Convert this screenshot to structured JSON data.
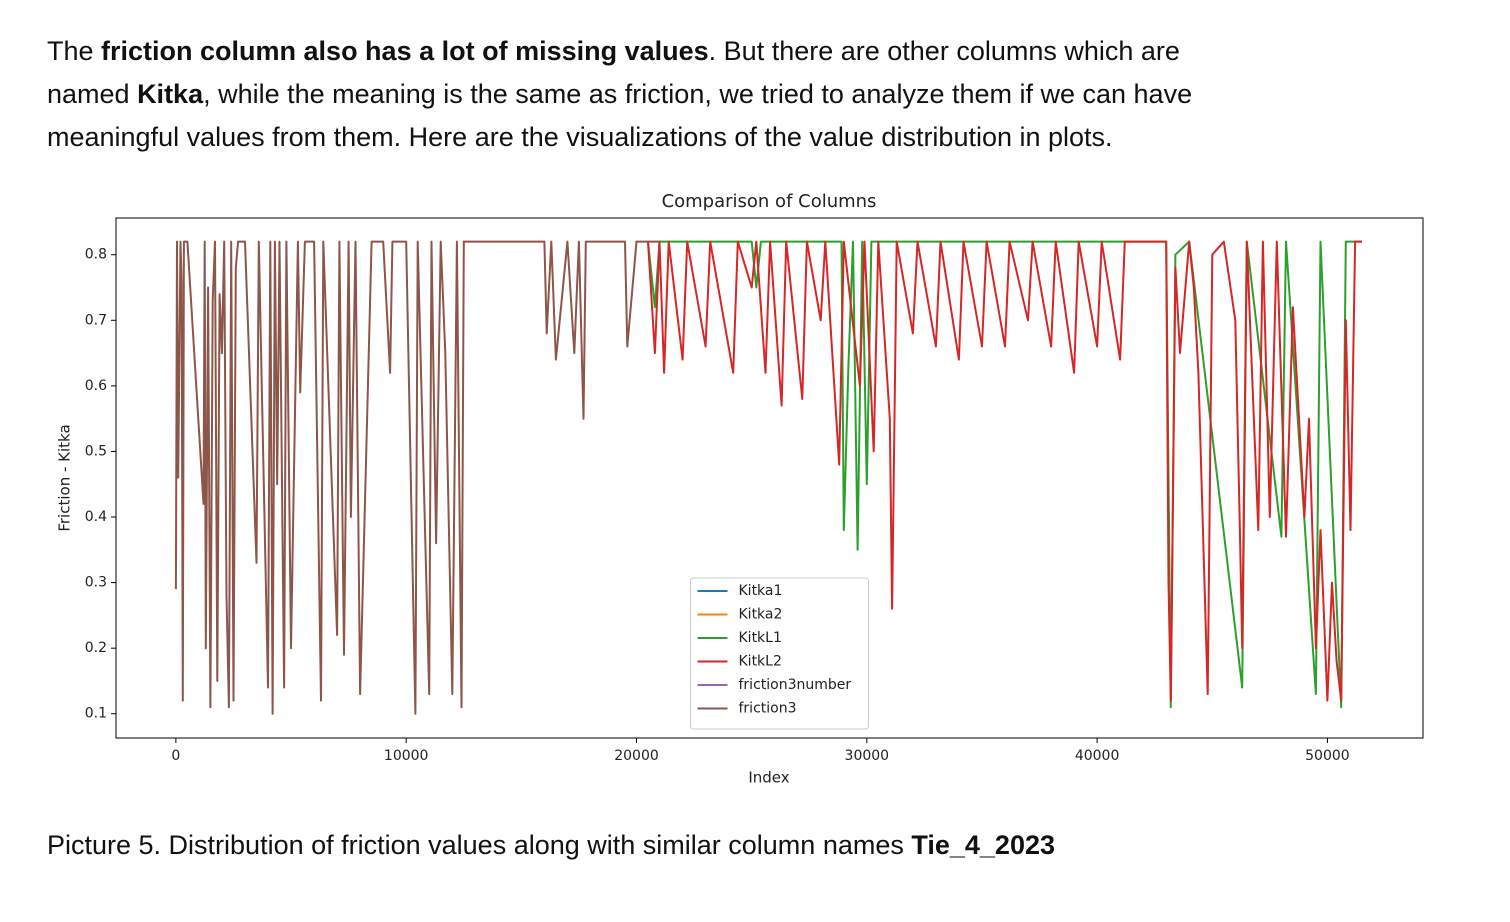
{
  "document": {
    "paragraph": [
      [
        {
          "text": "The "
        },
        {
          "text": "friction column also has a lot of missing values",
          "bold": true
        },
        {
          "text": ". But there are other columns which are"
        }
      ],
      [
        {
          "text": "named "
        },
        {
          "text": "Kitka",
          "bold": true
        },
        {
          "text": ", while the meaning is the same as friction, we tried to analyze them if we can have"
        }
      ],
      [
        {
          "text": "meaningful values from them. Here are the visualizations of the value distribution in plots."
        }
      ]
    ],
    "caption": [
      {
        "text": "Picture 5. Distribution of friction values along with similar column names "
      },
      {
        "text": "Tie_4_2023",
        "bold": true
      }
    ]
  },
  "chart_data": {
    "type": "line",
    "title": "Comparison of Columns",
    "x_label": "Index",
    "y_label": "Friction - Kitka",
    "xlim": [
      -2600,
      54150
    ],
    "ylim": [
      0.063,
      0.856
    ],
    "xticks": [
      0,
      10000,
      20000,
      30000,
      40000,
      50000
    ],
    "yticks": [
      0.1,
      0.2,
      0.3,
      0.4,
      0.5,
      0.6,
      0.7,
      0.8
    ],
    "grid": false,
    "legend": "lower center",
    "series": [
      {
        "name": "Kitka1",
        "color": "#1f77b4",
        "x": [],
        "values": []
      },
      {
        "name": "Kitka2",
        "color": "#ff7f0e",
        "x": [],
        "values": []
      },
      {
        "name": "KitkL1",
        "color": "#2ca02c",
        "x": [
          20500,
          20800,
          21000,
          25000,
          25200,
          25400,
          28900,
          29000,
          29200,
          29400,
          29600,
          29800,
          30000,
          30200,
          42000,
          43000,
          43200,
          43400,
          44000,
          46300,
          46500,
          48000,
          48200,
          49500,
          49700,
          50600,
          50800,
          51500
        ],
        "values": [
          0.82,
          0.72,
          0.82,
          0.82,
          0.75,
          0.82,
          0.82,
          0.38,
          0.63,
          0.82,
          0.35,
          0.82,
          0.45,
          0.82,
          0.82,
          0.82,
          0.11,
          0.8,
          0.82,
          0.14,
          0.82,
          0.37,
          0.82,
          0.13,
          0.82,
          0.11,
          0.82,
          0.82
        ]
      },
      {
        "name": "KitkL2",
        "color": "#d62728",
        "x": [
          20500,
          20800,
          21000,
          21200,
          21400,
          22000,
          22200,
          23000,
          23200,
          24200,
          24400,
          25000,
          25200,
          25600,
          25800,
          26300,
          26500,
          27200,
          27400,
          28000,
          28200,
          28800,
          29000,
          29700,
          29900,
          30300,
          30500,
          31000,
          31100,
          31300,
          32000,
          32200,
          33000,
          33200,
          34000,
          34200,
          35000,
          35200,
          36000,
          36200,
          37000,
          37200,
          38000,
          38200,
          39000,
          39200,
          40000,
          40200,
          41000,
          41200,
          42000,
          43000,
          43100,
          43200,
          43400,
          43600,
          44000,
          44200,
          44400,
          44800,
          45000,
          45500,
          46000,
          46200,
          46300,
          46500,
          47000,
          47200,
          47500,
          47800,
          48200,
          48500,
          49000,
          49200,
          49500,
          49700,
          50000,
          50200,
          50400,
          50600,
          50800,
          51000,
          51200,
          51500
        ],
        "values": [
          0.82,
          0.65,
          0.82,
          0.62,
          0.82,
          0.64,
          0.82,
          0.66,
          0.82,
          0.62,
          0.82,
          0.75,
          0.82,
          0.62,
          0.82,
          0.57,
          0.82,
          0.58,
          0.82,
          0.7,
          0.82,
          0.48,
          0.82,
          0.6,
          0.82,
          0.5,
          0.82,
          0.55,
          0.26,
          0.82,
          0.68,
          0.82,
          0.66,
          0.82,
          0.64,
          0.82,
          0.66,
          0.82,
          0.66,
          0.82,
          0.7,
          0.82,
          0.66,
          0.82,
          0.62,
          0.82,
          0.66,
          0.82,
          0.64,
          0.82,
          0.82,
          0.82,
          0.3,
          0.12,
          0.78,
          0.65,
          0.82,
          0.75,
          0.62,
          0.13,
          0.8,
          0.82,
          0.7,
          0.38,
          0.2,
          0.82,
          0.38,
          0.82,
          0.4,
          0.82,
          0.37,
          0.72,
          0.4,
          0.55,
          0.2,
          0.38,
          0.12,
          0.3,
          0.18,
          0.12,
          0.7,
          0.38,
          0.82,
          0.82
        ]
      },
      {
        "name": "friction3number",
        "color": "#9467bd",
        "x": [],
        "values": []
      },
      {
        "name": "friction3",
        "color": "#8c564b",
        "x": [
          0,
          50,
          100,
          200,
          250,
          300,
          350,
          400,
          500,
          1200,
          1250,
          1300,
          1400,
          1500,
          1600,
          1700,
          1800,
          1900,
          2000,
          2100,
          2200,
          2300,
          2400,
          2500,
          2600,
          2700,
          3000,
          3500,
          3600,
          4000,
          4100,
          4200,
          4300,
          4400,
          4500,
          4700,
          4800,
          5000,
          5300,
          5400,
          5600,
          6000,
          6300,
          6400,
          7000,
          7100,
          7300,
          7500,
          7600,
          7800,
          8000,
          8500,
          9000,
          9300,
          9400,
          10000,
          10400,
          10500,
          11000,
          11100,
          11300,
          11500,
          11700,
          12000,
          12200,
          12400,
          12500,
          16000,
          16100,
          16300,
          16500,
          17000,
          17300,
          17500,
          17700,
          17800,
          18500,
          19500,
          19600,
          20000,
          20500,
          21000
        ],
        "values": [
          0.29,
          0.82,
          0.46,
          0.82,
          0.76,
          0.12,
          0.82,
          0.82,
          0.82,
          0.42,
          0.82,
          0.2,
          0.75,
          0.11,
          0.73,
          0.82,
          0.15,
          0.74,
          0.65,
          0.82,
          0.28,
          0.11,
          0.82,
          0.12,
          0.78,
          0.82,
          0.82,
          0.33,
          0.82,
          0.14,
          0.82,
          0.1,
          0.82,
          0.45,
          0.82,
          0.14,
          0.82,
          0.2,
          0.82,
          0.59,
          0.82,
          0.82,
          0.12,
          0.82,
          0.22,
          0.82,
          0.19,
          0.82,
          0.4,
          0.82,
          0.13,
          0.82,
          0.82,
          0.62,
          0.82,
          0.82,
          0.1,
          0.82,
          0.13,
          0.82,
          0.36,
          0.82,
          0.65,
          0.13,
          0.82,
          0.11,
          0.82,
          0.82,
          0.68,
          0.82,
          0.64,
          0.82,
          0.65,
          0.82,
          0.55,
          0.82,
          0.82,
          0.82,
          0.66,
          0.82,
          0.82,
          0.82
        ]
      }
    ]
  }
}
